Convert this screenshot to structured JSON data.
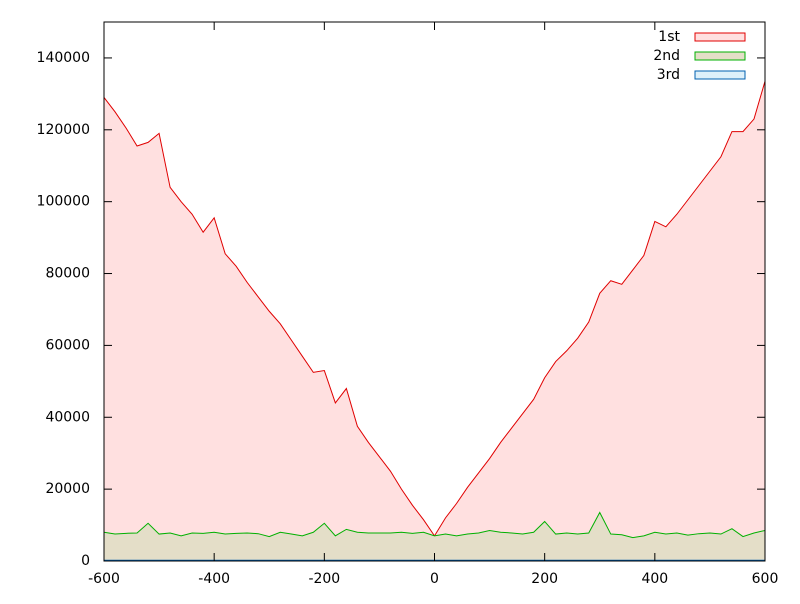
{
  "chart_data": {
    "type": "area",
    "x": [
      -600,
      -580,
      -560,
      -540,
      -520,
      -500,
      -480,
      -460,
      -440,
      -420,
      -400,
      -380,
      -360,
      -340,
      -320,
      -300,
      -280,
      -260,
      -240,
      -220,
      -200,
      -180,
      -160,
      -140,
      -120,
      -100,
      -80,
      -60,
      -40,
      -20,
      0,
      20,
      40,
      60,
      80,
      100,
      120,
      140,
      160,
      180,
      200,
      220,
      240,
      260,
      280,
      300,
      320,
      340,
      360,
      380,
      400,
      420,
      440,
      460,
      480,
      500,
      520,
      540,
      560,
      580,
      600
    ],
    "series": [
      {
        "name": "1st",
        "color": "#e00000",
        "fill": "#ffe0e0",
        "values": [
          129000,
          125000,
          120500,
          115500,
          116500,
          119000,
          104000,
          100000,
          96500,
          91500,
          95500,
          85500,
          82000,
          77500,
          73500,
          69500,
          66000,
          61500,
          57000,
          52500,
          53000,
          44000,
          48000,
          37500,
          33000,
          29000,
          25000,
          20000,
          15500,
          11500,
          7000,
          12000,
          16000,
          20500,
          24500,
          28500,
          33000,
          37000,
          41000,
          45000,
          51000,
          55500,
          58500,
          62000,
          66500,
          74500,
          78000,
          77000,
          81000,
          85000,
          94500,
          93000,
          96500,
          100500,
          104500,
          108500,
          112500,
          119500,
          119500,
          123000,
          133500
        ]
      },
      {
        "name": "2nd",
        "color": "#00b000",
        "fill": "#e4dec8",
        "values": [
          8000,
          7500,
          7700,
          7800,
          10500,
          7500,
          7800,
          7000,
          7800,
          7700,
          8000,
          7500,
          7700,
          7800,
          7600,
          6800,
          8000,
          7500,
          7000,
          8000,
          10500,
          7000,
          8800,
          8000,
          7800,
          7800,
          7800,
          8000,
          7700,
          8000,
          7000,
          7500,
          7000,
          7500,
          7800,
          8500,
          8000,
          7800,
          7500,
          8000,
          11000,
          7500,
          7800,
          7500,
          7800,
          13500,
          7500,
          7300,
          6500,
          7000,
          8000,
          7500,
          7800,
          7200,
          7600,
          7800,
          7500,
          9000,
          6800,
          7800,
          8500
        ]
      },
      {
        "name": "3rd",
        "color": "#0060b0",
        "fill": "#ddf0fa",
        "values": [
          200,
          200,
          200,
          200,
          200,
          200,
          200,
          200,
          200,
          200,
          200,
          200,
          200,
          200,
          200,
          200,
          200,
          200,
          200,
          200,
          200,
          200,
          200,
          200,
          200,
          200,
          200,
          200,
          200,
          200,
          200,
          200,
          200,
          200,
          200,
          200,
          200,
          200,
          200,
          200,
          200,
          200,
          200,
          200,
          200,
          200,
          200,
          200,
          200,
          200,
          200,
          200,
          200,
          200,
          200,
          200,
          200,
          200,
          200,
          200,
          200
        ]
      }
    ],
    "xlim": [
      -600,
      600
    ],
    "xticks": [
      -600,
      -400,
      -200,
      0,
      200,
      400,
      600
    ],
    "ylim": [
      0,
      150000
    ],
    "yticks": [
      0,
      20000,
      40000,
      60000,
      80000,
      100000,
      120000,
      140000
    ],
    "legend": "top-right"
  }
}
